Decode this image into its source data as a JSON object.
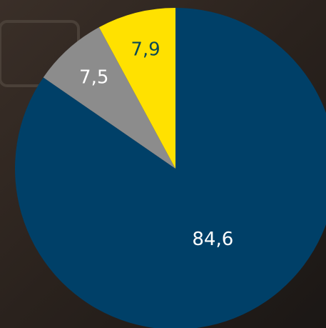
{
  "chart_data": {
    "type": "pie",
    "categories": [
      null,
      null,
      null
    ],
    "values": [
      84.6,
      7.5,
      7.9
    ],
    "value_labels": [
      "84,6",
      "7,5",
      "7,9"
    ],
    "colors": [
      "#004068",
      "#8c8c8c",
      "#ffe100"
    ],
    "label_colors": [
      "#ffffff",
      "#ffffff",
      "#0b4a55"
    ],
    "start_angle": 0,
    "direction": "clockwise"
  }
}
